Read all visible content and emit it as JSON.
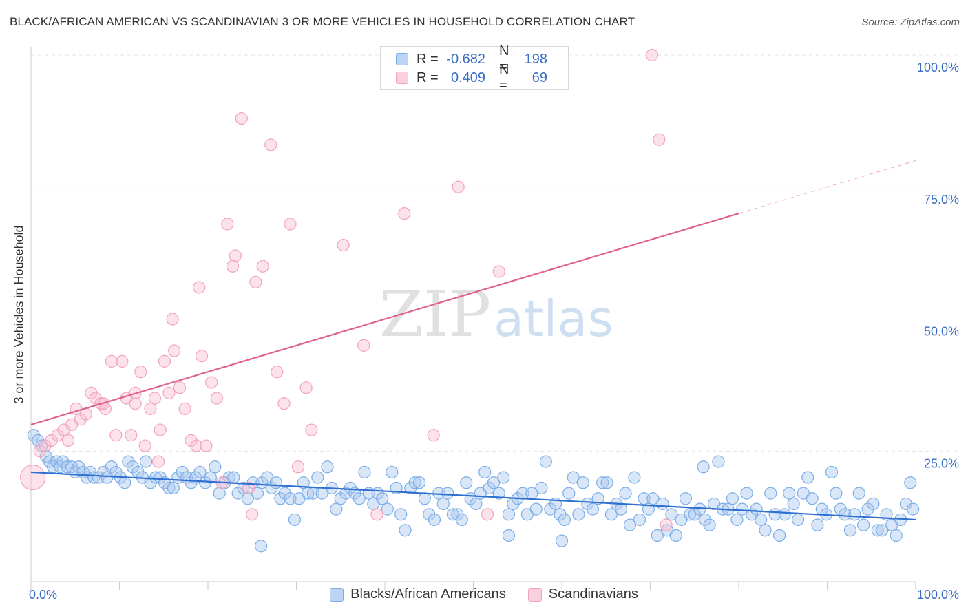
{
  "title": "BLACK/AFRICAN AMERICAN VS SCANDINAVIAN 3 OR MORE VEHICLES IN HOUSEHOLD CORRELATION CHART",
  "source": "Source: ZipAtlas.com",
  "watermark": {
    "zip": "ZIP",
    "atlas": "atlas"
  },
  "legend": {
    "rows": [
      {
        "r_label": "R =",
        "r_value": "-0.682",
        "n_label": "N =",
        "n_value": "198",
        "color": "#7aaee8"
      },
      {
        "r_label": "R =",
        "r_value": "0.409",
        "n_label": "N =",
        "n_value": "69",
        "color": "#f2a3bd"
      }
    ]
  },
  "bottom_legend": [
    {
      "label": "Blacks/African Americans",
      "color": "#7aaee8"
    },
    {
      "label": "Scandinavians",
      "color": "#f2a3bd"
    }
  ],
  "chart_data": {
    "type": "scatter",
    "title": "BLACK/AFRICAN AMERICAN VS SCANDINAVIAN 3 OR MORE VEHICLES IN HOUSEHOLD CORRELATION CHART",
    "xlabel": "",
    "ylabel": "3 or more Vehicles in Household",
    "xlim": [
      0,
      100
    ],
    "ylim": [
      0,
      100
    ],
    "x_tick_labels": [
      "0.0%",
      "100.0%"
    ],
    "y_tick_labels": [
      "25.0%",
      "50.0%",
      "75.0%",
      "100.0%"
    ],
    "y_ticks": [
      25,
      50,
      75,
      100
    ],
    "grid": true,
    "legend_position": "top-center",
    "series": [
      {
        "name": "Blacks/African Americans",
        "color": "#7aaee8",
        "line_color": "#2f6fd0",
        "trend": {
          "x": [
            0,
            100
          ],
          "y": [
            21.0,
            12.0
          ],
          "dashed_from": 100
        },
        "points": [
          [
            0.3,
            28
          ],
          [
            0.8,
            27
          ],
          [
            1.2,
            26
          ],
          [
            1.7,
            24
          ],
          [
            2.1,
            23
          ],
          [
            2.5,
            22
          ],
          [
            2.9,
            23
          ],
          [
            3.3,
            22
          ],
          [
            3.6,
            23
          ],
          [
            4.1,
            22
          ],
          [
            4.6,
            22
          ],
          [
            5,
            21
          ],
          [
            5.4,
            22
          ],
          [
            5.9,
            21
          ],
          [
            6.3,
            20
          ],
          [
            6.7,
            21
          ],
          [
            7.1,
            20
          ],
          [
            7.6,
            20
          ],
          [
            8.2,
            21
          ],
          [
            8.6,
            20
          ],
          [
            9.1,
            22
          ],
          [
            9.6,
            21
          ],
          [
            10.1,
            20
          ],
          [
            10.6,
            19
          ],
          [
            11,
            23
          ],
          [
            11.5,
            22
          ],
          [
            12.1,
            21
          ],
          [
            12.6,
            20
          ],
          [
            13,
            23
          ],
          [
            13.5,
            19
          ],
          [
            14.1,
            20
          ],
          [
            14.6,
            20
          ],
          [
            15.1,
            19
          ],
          [
            15.6,
            18
          ],
          [
            16.1,
            18
          ],
          [
            16.6,
            20
          ],
          [
            17.1,
            21
          ],
          [
            17.6,
            20
          ],
          [
            18.1,
            19
          ],
          [
            18.6,
            20
          ],
          [
            19.1,
            21
          ],
          [
            19.7,
            19
          ],
          [
            20.3,
            20
          ],
          [
            20.8,
            22
          ],
          [
            21.3,
            17
          ],
          [
            21.9,
            19
          ],
          [
            22.4,
            20
          ],
          [
            22.9,
            20
          ],
          [
            23.4,
            17
          ],
          [
            24,
            18
          ],
          [
            24.5,
            16
          ],
          [
            25.1,
            19
          ],
          [
            25.6,
            17
          ],
          [
            26.1,
            19
          ],
          [
            26.7,
            20
          ],
          [
            27.2,
            18
          ],
          [
            27.7,
            19
          ],
          [
            28.2,
            16
          ],
          [
            28.7,
            17
          ],
          [
            29.3,
            16
          ],
          [
            29.8,
            12
          ],
          [
            30.3,
            16
          ],
          [
            30.8,
            19
          ],
          [
            31.3,
            17
          ],
          [
            31.9,
            17
          ],
          [
            32.4,
            20
          ],
          [
            32.9,
            17
          ],
          [
            33.5,
            22
          ],
          [
            34,
            18
          ],
          [
            34.5,
            14
          ],
          [
            35,
            16
          ],
          [
            35.6,
            17
          ],
          [
            36.1,
            18
          ],
          [
            36.6,
            17
          ],
          [
            37.1,
            16
          ],
          [
            37.7,
            21
          ],
          [
            38.2,
            17
          ],
          [
            38.7,
            15
          ],
          [
            39.2,
            17
          ],
          [
            39.7,
            16
          ],
          [
            40.3,
            14
          ],
          [
            40.8,
            21
          ],
          [
            41.3,
            18
          ],
          [
            41.8,
            13
          ],
          [
            42.3,
            10
          ],
          [
            42.9,
            18
          ],
          [
            43.4,
            19
          ],
          [
            43.9,
            19
          ],
          [
            44.5,
            16
          ],
          [
            45,
            13
          ],
          [
            45.6,
            12
          ],
          [
            46.1,
            17
          ],
          [
            46.6,
            15
          ],
          [
            47.1,
            17
          ],
          [
            47.7,
            13
          ],
          [
            48.2,
            13
          ],
          [
            48.7,
            12
          ],
          [
            49.2,
            19
          ],
          [
            49.7,
            16
          ],
          [
            50.3,
            15
          ],
          [
            50.8,
            17
          ],
          [
            51.3,
            21
          ],
          [
            51.8,
            18
          ],
          [
            52.3,
            19
          ],
          [
            52.9,
            17
          ],
          [
            53.4,
            20
          ],
          [
            54,
            13
          ],
          [
            54.5,
            15
          ],
          [
            55,
            16
          ],
          [
            55.6,
            17
          ],
          [
            56.1,
            13
          ],
          [
            56.6,
            17
          ],
          [
            57.1,
            14
          ],
          [
            57.7,
            18
          ],
          [
            58.2,
            23
          ],
          [
            58.7,
            14
          ],
          [
            59.3,
            15
          ],
          [
            59.8,
            13
          ],
          [
            60.3,
            12
          ],
          [
            60.8,
            17
          ],
          [
            61.3,
            20
          ],
          [
            61.9,
            13
          ],
          [
            62.4,
            19
          ],
          [
            62.9,
            15
          ],
          [
            63.5,
            14
          ],
          [
            64.1,
            16
          ],
          [
            64.6,
            19
          ],
          [
            65.1,
            19
          ],
          [
            65.6,
            13
          ],
          [
            66.2,
            15
          ],
          [
            66.7,
            14
          ],
          [
            67.2,
            17
          ],
          [
            67.7,
            11
          ],
          [
            68.2,
            20
          ],
          [
            68.8,
            12
          ],
          [
            69.3,
            16
          ],
          [
            69.8,
            14
          ],
          [
            70.3,
            16
          ],
          [
            70.8,
            9
          ],
          [
            71.4,
            15
          ],
          [
            71.9,
            10
          ],
          [
            72.4,
            13
          ],
          [
            72.9,
            9
          ],
          [
            73.5,
            12
          ],
          [
            74,
            16
          ],
          [
            74.5,
            13
          ],
          [
            75,
            13
          ],
          [
            75.6,
            14
          ],
          [
            76.2,
            12
          ],
          [
            76.7,
            11
          ],
          [
            77.2,
            15
          ],
          [
            77.7,
            23
          ],
          [
            78.2,
            14
          ],
          [
            78.8,
            14
          ],
          [
            79.3,
            16
          ],
          [
            79.8,
            12
          ],
          [
            80.4,
            14
          ],
          [
            80.9,
            17
          ],
          [
            81.5,
            13
          ],
          [
            82,
            14
          ],
          [
            82.5,
            12
          ],
          [
            83,
            10
          ],
          [
            83.6,
            17
          ],
          [
            84.1,
            13
          ],
          [
            84.6,
            9
          ],
          [
            85.2,
            13
          ],
          [
            85.7,
            17
          ],
          [
            86.2,
            15
          ],
          [
            86.7,
            12
          ],
          [
            87.3,
            17
          ],
          [
            87.8,
            20
          ],
          [
            88.3,
            16
          ],
          [
            88.9,
            11
          ],
          [
            89.4,
            14
          ],
          [
            89.9,
            13
          ],
          [
            90.5,
            21
          ],
          [
            91,
            17
          ],
          [
            91.5,
            14
          ],
          [
            92,
            13
          ],
          [
            92.6,
            10
          ],
          [
            93.1,
            13
          ],
          [
            93.6,
            17
          ],
          [
            94.1,
            11
          ],
          [
            94.6,
            14
          ],
          [
            95.2,
            15
          ],
          [
            95.7,
            10
          ],
          [
            96.2,
            10
          ],
          [
            96.7,
            13
          ],
          [
            97.3,
            11
          ],
          [
            97.8,
            9
          ],
          [
            98.3,
            12
          ],
          [
            98.9,
            15
          ],
          [
            99.4,
            19
          ],
          [
            99.7,
            14
          ],
          [
            26,
            7
          ],
          [
            54,
            9
          ],
          [
            60,
            8
          ],
          [
            76,
            22
          ]
        ]
      },
      {
        "name": "Scandinavians",
        "color": "#f2a3bd",
        "line_color": "#e06090",
        "trend": {
          "x": [
            0,
            100
          ],
          "y": [
            30.0,
            80.0
          ],
          "dashed_from": 80
        },
        "points": [
          [
            0.2,
            20
          ],
          [
            1,
            25
          ],
          [
            1.6,
            26
          ],
          [
            2.3,
            27
          ],
          [
            3,
            28
          ],
          [
            3.7,
            29
          ],
          [
            4.2,
            27
          ],
          [
            4.6,
            30
          ],
          [
            5.1,
            33
          ],
          [
            5.6,
            31
          ],
          [
            6.2,
            32
          ],
          [
            6.8,
            36
          ],
          [
            7.3,
            35
          ],
          [
            7.9,
            34
          ],
          [
            8.4,
            33
          ],
          [
            9.1,
            42
          ],
          [
            9.6,
            28
          ],
          [
            10.3,
            42
          ],
          [
            10.8,
            35
          ],
          [
            11.3,
            28
          ],
          [
            11.8,
            34
          ],
          [
            12.4,
            40
          ],
          [
            12.9,
            26
          ],
          [
            13.5,
            33
          ],
          [
            14,
            35
          ],
          [
            14.6,
            29
          ],
          [
            15.1,
            42
          ],
          [
            15.6,
            36
          ],
          [
            16.2,
            44
          ],
          [
            16.8,
            37
          ],
          [
            17.4,
            33
          ],
          [
            18.1,
            27
          ],
          [
            18.7,
            26
          ],
          [
            19.3,
            43
          ],
          [
            19.8,
            26
          ],
          [
            20.4,
            38
          ],
          [
            21,
            35
          ],
          [
            21.6,
            19
          ],
          [
            22.2,
            68
          ],
          [
            23.1,
            62
          ],
          [
            23.8,
            88
          ],
          [
            24.6,
            18
          ],
          [
            25.4,
            57
          ],
          [
            26.2,
            60
          ],
          [
            27.1,
            83
          ],
          [
            27.8,
            40
          ],
          [
            28.6,
            34
          ],
          [
            29.3,
            68
          ],
          [
            30.2,
            22
          ],
          [
            31.1,
            37
          ],
          [
            31.7,
            29
          ],
          [
            35.3,
            64
          ],
          [
            37.6,
            45
          ],
          [
            39.1,
            13
          ],
          [
            42.2,
            70
          ],
          [
            45.5,
            28
          ],
          [
            48.3,
            75
          ],
          [
            51.6,
            13
          ],
          [
            52.9,
            59
          ],
          [
            25,
            13
          ],
          [
            19,
            56
          ],
          [
            16,
            50
          ],
          [
            14.4,
            23
          ],
          [
            11.8,
            36
          ],
          [
            22.8,
            60
          ],
          [
            8.2,
            34
          ],
          [
            71,
            84
          ],
          [
            70.2,
            100
          ],
          [
            71.8,
            11
          ]
        ]
      }
    ]
  }
}
